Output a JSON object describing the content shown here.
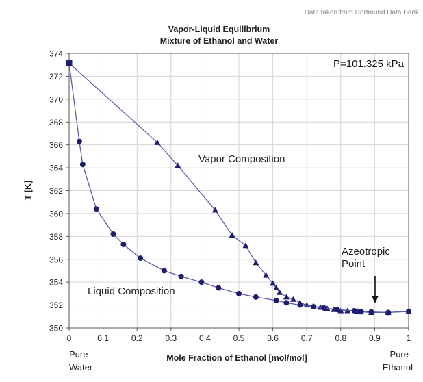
{
  "source_note": "Data taken from Dortmund Data Bank",
  "colors": {
    "series": "#1e1e6e",
    "line": "#5c5cae",
    "one_tick": "#a040a0",
    "grid": "#d6d6d6"
  },
  "chart_data": {
    "type": "line",
    "title": "Vapor-Liquid Equilibrium",
    "subtitle": "Mixture of Ethanol and Water",
    "xlabel": "Mole Fraction of Ethanol [mol/mol]",
    "ylabel": "T [K]",
    "xlim": [
      0,
      1
    ],
    "ylim": [
      350,
      374
    ],
    "x_ticks": [
      "0",
      "0.1",
      "0.2",
      "0.3",
      "0.4",
      "0.5",
      "0.6",
      "0.7",
      "0.8",
      "0.9",
      "1"
    ],
    "y_ticks": [
      "350",
      "352",
      "354",
      "356",
      "358",
      "360",
      "362",
      "364",
      "366",
      "368",
      "370",
      "372",
      "374"
    ],
    "grid": true,
    "pressure_label": "P=101.325 kPa",
    "end_labels": {
      "left_line1": "Pure",
      "left_line2": "Water",
      "right_line1": "Pure",
      "right_line2": "Ethanol"
    },
    "annotations": {
      "vapor": "Vapor Composition",
      "liquid": "Liquid Composition",
      "azeotrope_line1": "Azeotropic",
      "azeotrope_line2": "Point"
    },
    "series": [
      {
        "name": "Vapor Composition",
        "marker": "triangle",
        "x": [
          0.0,
          0.26,
          0.32,
          0.43,
          0.48,
          0.52,
          0.55,
          0.58,
          0.6,
          0.61,
          0.62,
          0.64,
          0.66,
          0.68,
          0.7,
          0.72,
          0.74,
          0.76,
          0.78,
          0.8,
          0.82,
          0.85,
          0.86,
          0.89,
          0.94,
          1.0
        ],
        "y": [
          373.15,
          366.2,
          364.2,
          360.3,
          358.1,
          357.2,
          355.7,
          354.6,
          353.9,
          353.5,
          353.1,
          352.7,
          352.5,
          352.2,
          352.0,
          351.9,
          351.8,
          351.7,
          351.6,
          351.5,
          351.5,
          351.45,
          351.4,
          351.35,
          351.35,
          351.45
        ]
      },
      {
        "name": "Liquid Composition",
        "marker": "circle",
        "x": [
          0.0,
          0.03,
          0.04,
          0.08,
          0.13,
          0.16,
          0.21,
          0.28,
          0.33,
          0.39,
          0.44,
          0.5,
          0.55,
          0.61,
          0.64,
          0.68,
          0.72,
          0.75,
          0.79,
          0.84,
          0.86,
          0.89,
          0.94,
          1.0
        ],
        "y": [
          373.15,
          366.3,
          364.3,
          360.4,
          358.2,
          357.3,
          356.1,
          355.0,
          354.5,
          354.0,
          353.5,
          353.0,
          352.7,
          352.4,
          352.2,
          352.0,
          351.85,
          351.75,
          351.6,
          351.5,
          351.45,
          351.4,
          351.35,
          351.45
        ]
      }
    ]
  }
}
